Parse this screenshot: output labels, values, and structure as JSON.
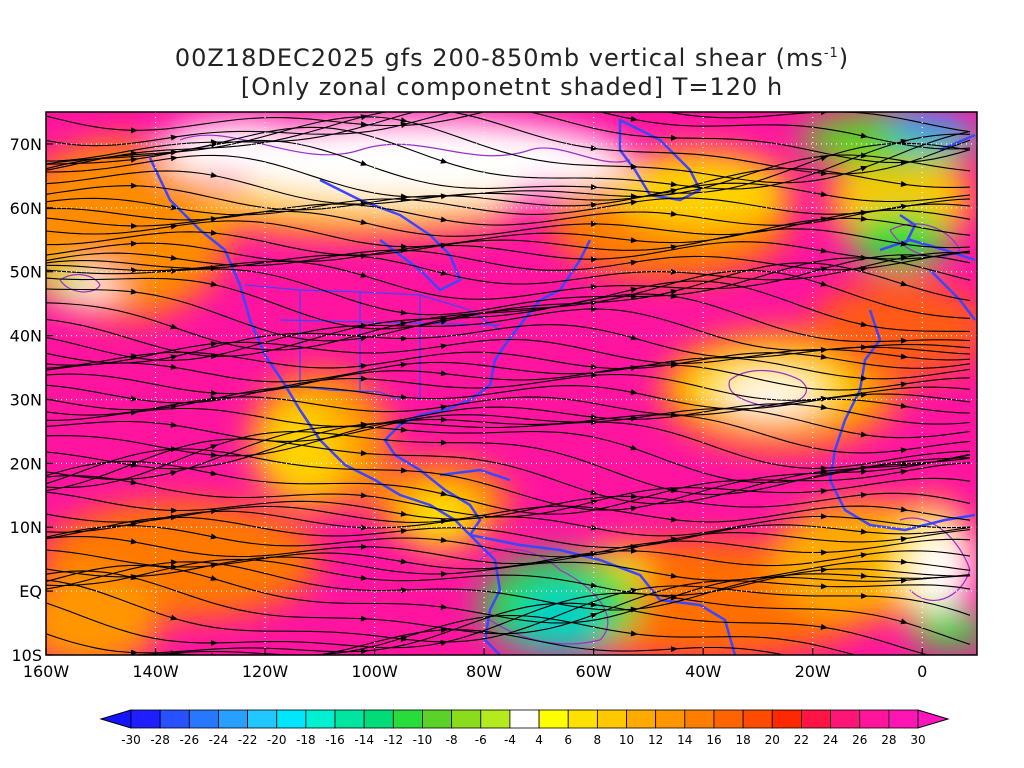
{
  "title": {
    "line1": "00Z18DEC2025 gfs 200-850mb vertical shear (ms",
    "line1_sup": "-1",
    "line1_end": ")",
    "line2": "[Only zonal componetnt shaded] T=120 h"
  },
  "map": {
    "lon_range": [
      -160,
      10
    ],
    "lat_range": [
      -10,
      75
    ],
    "lon_ticks": [
      {
        "lon": -160,
        "label": "160W"
      },
      {
        "lon": -140,
        "label": "140W"
      },
      {
        "lon": -120,
        "label": "120W"
      },
      {
        "lon": -100,
        "label": "100W"
      },
      {
        "lon": -80,
        "label": "80W"
      },
      {
        "lon": -60,
        "label": "60W"
      },
      {
        "lon": -40,
        "label": "40W"
      },
      {
        "lon": -20,
        "label": "20W"
      },
      {
        "lon": 0,
        "label": "0"
      }
    ],
    "lat_ticks": [
      {
        "lat": -10,
        "label": "10S"
      },
      {
        "lat": 0,
        "label": "EQ"
      },
      {
        "lat": 10,
        "label": "10N"
      },
      {
        "lat": 20,
        "label": "20N"
      },
      {
        "lat": 30,
        "label": "30N"
      },
      {
        "lat": 40,
        "label": "40N"
      },
      {
        "lat": 50,
        "label": "50N"
      },
      {
        "lat": 60,
        "label": "60N"
      },
      {
        "lat": 70,
        "label": "70N"
      }
    ],
    "coastline_color": "#3c46ff",
    "contour_color": "#9b30c8",
    "streamline_color": "#000000",
    "grid": "dotted white every 20 degrees"
  },
  "colorbar": {
    "labels": [
      "-30",
      "-28",
      "-26",
      "-24",
      "-22",
      "-20",
      "-18",
      "-16",
      "-14",
      "-12",
      "-10",
      "-8",
      "-6",
      "-4",
      "4",
      "6",
      "8",
      "10",
      "12",
      "14",
      "16",
      "18",
      "20",
      "22",
      "24",
      "26",
      "28",
      "30"
    ],
    "colors": [
      "#1e1eff",
      "#2850ff",
      "#2878ff",
      "#28a0ff",
      "#20c8ff",
      "#00e6ff",
      "#00f0d2",
      "#00e6a0",
      "#00dc78",
      "#28dc3c",
      "#5ad228",
      "#8cdc1e",
      "#b4eb1e",
      "#ffffff",
      "#ffff00",
      "#ffe100",
      "#ffc800",
      "#ffaa00",
      "#ff9600",
      "#ff7d00",
      "#ff6400",
      "#ff4b00",
      "#ff2800",
      "#ff1446",
      "#ff1478",
      "#ff149b",
      "#ff14b4"
    ],
    "low_arrow_color": "#1414ff",
    "high_arrow_color": "#ff14be"
  }
}
